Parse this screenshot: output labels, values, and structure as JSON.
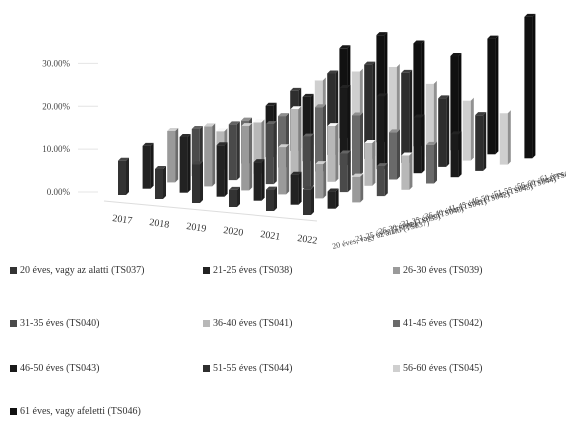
{
  "chart_data": {
    "type": "bar",
    "subtype": "3d-clustered-column",
    "title": "",
    "xlabel": "",
    "ylabel": "",
    "ylim": [
      0,
      35
    ],
    "y_ticks": [
      "0.00%",
      "10.00%",
      "20.00%",
      "30.00%"
    ],
    "categories": [
      "2017",
      "2018",
      "2019",
      "2020",
      "2021",
      "2022"
    ],
    "legend_position": "bottom",
    "series": [
      {
        "name": "20 éves, vagy az alatti (TS037)",
        "color": "#333333",
        "values": [
          8,
          7,
          9,
          4,
          5,
          6
        ]
      },
      {
        "name": "21-25 éves (TS038)",
        "color": "#222222",
        "values": [
          10,
          13,
          12,
          9,
          7,
          4
        ]
      },
      {
        "name": "26-30 éves (TS039)",
        "color": "#9a9a9a",
        "values": [
          12,
          14,
          15,
          11,
          8,
          6
        ]
      },
      {
        "name": "31-35 éves (TS040)",
        "color": "#4a4a4a",
        "values": [
          11,
          13,
          14,
          12,
          9,
          7
        ]
      },
      {
        "name": "36-40 éves (TS041)",
        "color": "#b8b8b8",
        "values": [
          9,
          12,
          16,
          13,
          10,
          8
        ]
      },
      {
        "name": "41-45 éves (TS042)",
        "color": "#6a6a6a",
        "values": [
          10,
          12,
          15,
          14,
          11,
          9
        ]
      },
      {
        "name": "46-50 éves (TS043)",
        "color": "#1a1a1a",
        "values": [
          12,
          15,
          18,
          17,
          13,
          10
        ]
      },
      {
        "name": "51-55 éves (TS044)",
        "color": "#2e2e2e",
        "values": [
          14,
          19,
          22,
          21,
          16,
          13
        ]
      },
      {
        "name": "56-60 éves (TS045)",
        "color": "#cfcfcf",
        "values": [
          15,
          18,
          20,
          17,
          14,
          12
        ]
      },
      {
        "name": "61 éves, vagy afeletti (TS046)",
        "color": "#111111",
        "values": [
          21,
          25,
          24,
          22,
          27,
          33
        ]
      }
    ]
  }
}
